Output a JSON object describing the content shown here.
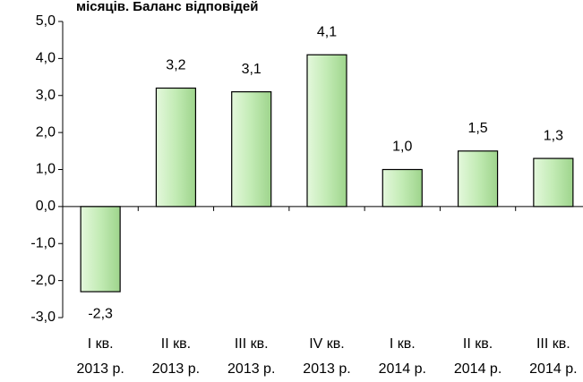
{
  "chart_data": {
    "type": "bar",
    "title": "місяців. Баланс відповідей",
    "categories": [
      [
        "I кв.",
        "2013 р."
      ],
      [
        "II кв.",
        "2013 р."
      ],
      [
        "III кв.",
        "2013 р."
      ],
      [
        "IV кв.",
        "2013 р."
      ],
      [
        "I кв.",
        "2014 р."
      ],
      [
        "II кв.",
        "2014 р."
      ],
      [
        "III кв.",
        "2014 р."
      ]
    ],
    "values": [
      -2.3,
      3.2,
      3.1,
      4.1,
      1.0,
      1.5,
      1.3
    ],
    "value_labels": [
      "-2,3",
      "3,2",
      "3,1",
      "4,1",
      "1,0",
      "1,5",
      "1,3"
    ],
    "color": "#c2ebb4",
    "ylim": [
      -3,
      5
    ],
    "yticks": [
      {
        "value": -3,
        "label": "-3,0"
      },
      {
        "value": -2,
        "label": "-2,0"
      },
      {
        "value": -1,
        "label": "-1,0"
      },
      {
        "value": 0,
        "label": "0,0"
      },
      {
        "value": 1,
        "label": "1,0"
      },
      {
        "value": 2,
        "label": "2,0"
      },
      {
        "value": 3,
        "label": "3,0"
      },
      {
        "value": 4,
        "label": "4,0"
      },
      {
        "value": 5,
        "label": "5,0"
      }
    ],
    "grid": false
  }
}
